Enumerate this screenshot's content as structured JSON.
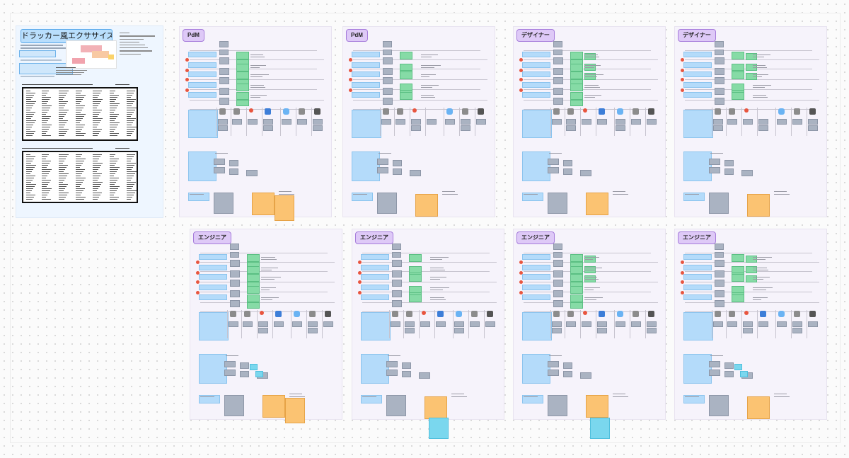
{
  "board": {
    "title": "ドラッカー風エクササイズ"
  },
  "frames": [
    {
      "role": "PdM"
    },
    {
      "role": "PdM"
    },
    {
      "role": "デザイナー"
    },
    {
      "role": "デザイナー"
    },
    {
      "role": "エンジニア"
    },
    {
      "role": "エンジニア"
    },
    {
      "role": "エンジニア"
    },
    {
      "role": "エンジニア"
    }
  ],
  "colors": {
    "canvas": "#fbfbfb",
    "frame_bg": "#f6f3fb",
    "role_tag": "#dec9f7",
    "sticky_blue": "#b4dbfa",
    "sticky_green": "#86dba6",
    "sticky_gray": "#aab3c2",
    "sticky_orange": "#fbc372",
    "sticky_cyan": "#7ad7ee",
    "marker_red": "#e8553f"
  }
}
